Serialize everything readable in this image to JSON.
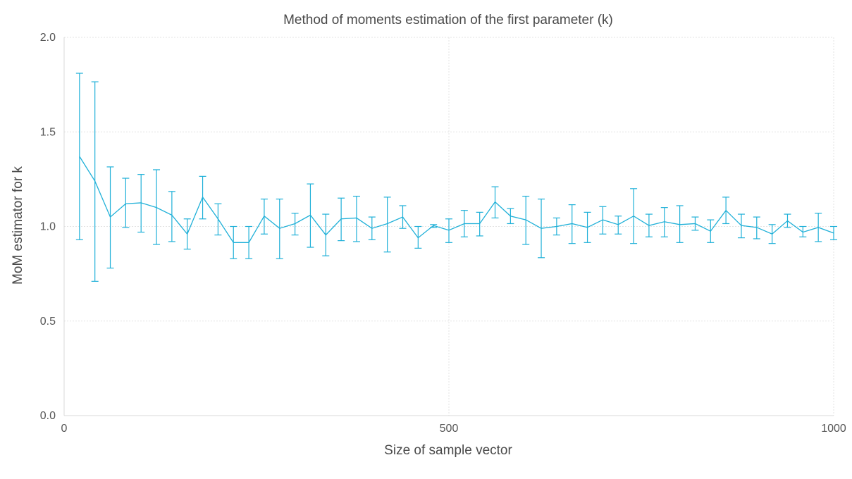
{
  "chart_data": {
    "type": "line",
    "title": "Method of moments estimation of the first parameter (k)",
    "xlabel": "Size of sample vector",
    "ylabel": "MoM estimator for k",
    "xlim": [
      0,
      1000
    ],
    "ylim": [
      0,
      2
    ],
    "xticks": [
      0,
      500,
      1000
    ],
    "yticks": [
      0.0,
      0.5,
      1.0,
      1.5,
      2.0
    ],
    "xtick_labels": [
      "0",
      "500",
      "1000"
    ],
    "ytick_labels": [
      "0.0",
      "0.5",
      "1.0",
      "1.5",
      "2.0"
    ],
    "grid": true,
    "legend": "none",
    "color": "#1fb0d8",
    "series": [
      {
        "x": [
          20,
          40,
          60,
          80,
          100,
          120,
          140,
          160,
          180,
          200,
          220,
          240,
          260,
          280,
          300,
          320,
          340,
          360,
          380,
          400,
          420,
          440,
          460,
          480,
          500,
          520,
          540,
          560,
          580,
          600,
          620,
          640,
          660,
          680,
          700,
          720,
          740,
          760,
          780,
          800,
          820,
          840,
          860,
          880,
          900,
          920,
          940,
          960,
          980,
          1000
        ],
        "y": [
          1.37,
          1.24,
          1.05,
          1.12,
          1.125,
          1.1,
          1.06,
          0.96,
          1.155,
          1.04,
          0.915,
          0.915,
          1.055,
          0.99,
          1.015,
          1.06,
          0.955,
          1.04,
          1.045,
          0.99,
          1.015,
          1.05,
          0.94,
          1.005,
          0.98,
          1.015,
          1.015,
          1.13,
          1.055,
          1.035,
          0.99,
          1.0,
          1.015,
          0.995,
          1.035,
          1.01,
          1.055,
          1.005,
          1.025,
          1.01,
          1.015,
          0.975,
          1.085,
          1.005,
          0.995,
          0.96,
          1.03,
          0.97,
          0.995,
          0.965
        ],
        "yerr_low": [
          0.93,
          0.71,
          0.78,
          0.995,
          0.97,
          0.905,
          0.92,
          0.88,
          1.04,
          0.955,
          0.83,
          0.83,
          0.96,
          0.83,
          0.955,
          0.89,
          0.845,
          0.925,
          0.92,
          0.93,
          0.865,
          0.99,
          0.885,
          0.995,
          0.915,
          0.945,
          0.95,
          1.045,
          1.015,
          0.905,
          0.835,
          0.955,
          0.91,
          0.915,
          0.96,
          0.96,
          0.91,
          0.945,
          0.945,
          0.915,
          0.98,
          0.915,
          1.015,
          0.94,
          0.935,
          0.91,
          0.995,
          0.945,
          0.92,
          0.93
        ],
        "yerr_high": [
          1.81,
          1.765,
          1.315,
          1.255,
          1.275,
          1.3,
          1.185,
          1.04,
          1.265,
          1.12,
          1.0,
          1.0,
          1.145,
          1.145,
          1.07,
          1.225,
          1.065,
          1.15,
          1.16,
          1.05,
          1.155,
          1.11,
          1.0,
          1.01,
          1.04,
          1.085,
          1.075,
          1.21,
          1.095,
          1.16,
          1.145,
          1.045,
          1.115,
          1.075,
          1.105,
          1.055,
          1.2,
          1.065,
          1.1,
          1.11,
          1.05,
          1.035,
          1.155,
          1.065,
          1.05,
          1.01,
          1.065,
          1.0,
          1.07,
          1.0
        ]
      }
    ]
  }
}
